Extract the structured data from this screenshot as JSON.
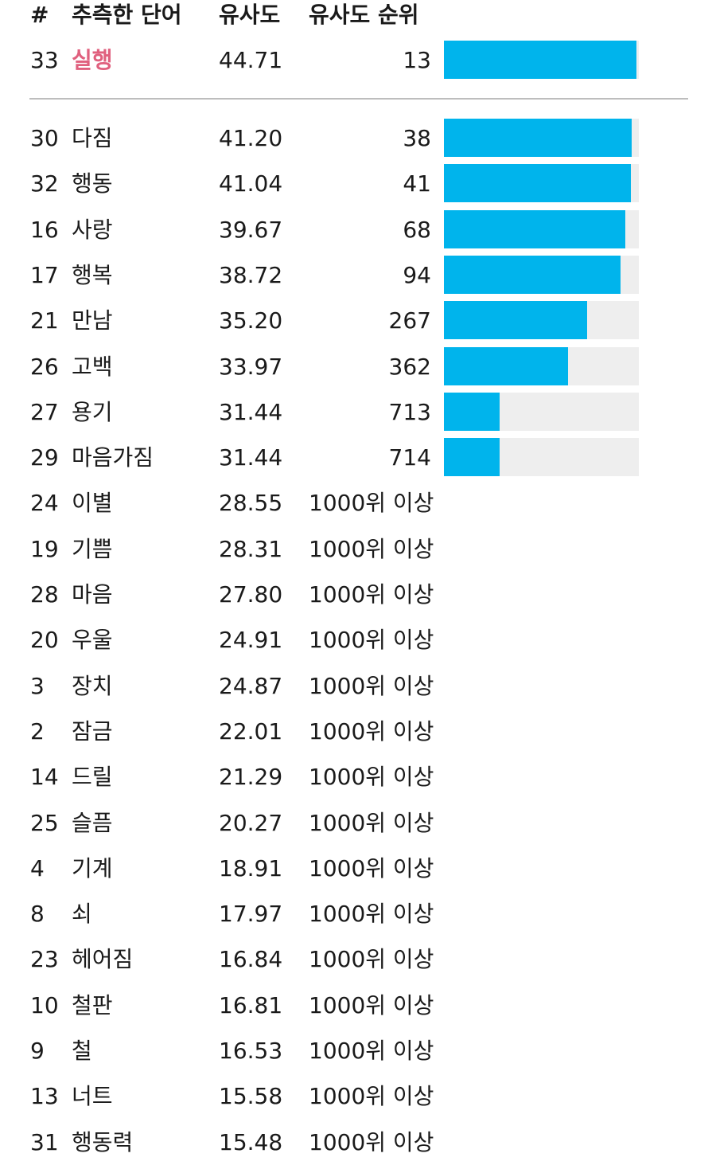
{
  "header": {
    "num": "#",
    "word": "추측한 단어",
    "similarity": "유사도",
    "rank": "유사도 순위"
  },
  "latest": {
    "num": "33",
    "word": "실행",
    "similarity": "44.71",
    "rank": "13",
    "proximity": 0.987
  },
  "guesses": [
    {
      "num": "30",
      "word": "다짐",
      "similarity": "41.20",
      "rank": "38",
      "proximity": 0.962
    },
    {
      "num": "32",
      "word": "행동",
      "similarity": "41.04",
      "rank": "41",
      "proximity": 0.959
    },
    {
      "num": "16",
      "word": "사랑",
      "similarity": "39.67",
      "rank": "68",
      "proximity": 0.932
    },
    {
      "num": "17",
      "word": "행복",
      "similarity": "38.72",
      "rank": "94",
      "proximity": 0.906
    },
    {
      "num": "21",
      "word": "만남",
      "similarity": "35.20",
      "rank": "267",
      "proximity": 0.733
    },
    {
      "num": "26",
      "word": "고백",
      "similarity": "33.97",
      "rank": "362",
      "proximity": 0.638
    },
    {
      "num": "27",
      "word": "용기",
      "similarity": "31.44",
      "rank": "713",
      "proximity": 0.287
    },
    {
      "num": "29",
      "word": "마음가짐",
      "similarity": "31.44",
      "rank": "714",
      "proximity": 0.286
    },
    {
      "num": "24",
      "word": "이별",
      "similarity": "28.55",
      "rank": "1000위 이상"
    },
    {
      "num": "19",
      "word": "기쁨",
      "similarity": "28.31",
      "rank": "1000위 이상"
    },
    {
      "num": "28",
      "word": "마음",
      "similarity": "27.80",
      "rank": "1000위 이상"
    },
    {
      "num": "20",
      "word": "우울",
      "similarity": "24.91",
      "rank": "1000위 이상"
    },
    {
      "num": "3",
      "word": "장치",
      "similarity": "24.87",
      "rank": "1000위 이상"
    },
    {
      "num": "2",
      "word": "잠금",
      "similarity": "22.01",
      "rank": "1000위 이상"
    },
    {
      "num": "14",
      "word": "드릴",
      "similarity": "21.29",
      "rank": "1000위 이상"
    },
    {
      "num": "25",
      "word": "슬픔",
      "similarity": "20.27",
      "rank": "1000위 이상"
    },
    {
      "num": "4",
      "word": "기계",
      "similarity": "18.91",
      "rank": "1000위 이상"
    },
    {
      "num": "8",
      "word": "쇠",
      "similarity": "17.97",
      "rank": "1000위 이상"
    },
    {
      "num": "23",
      "word": "헤어짐",
      "similarity": "16.84",
      "rank": "1000위 이상"
    },
    {
      "num": "10",
      "word": "철판",
      "similarity": "16.81",
      "rank": "1000위 이상"
    },
    {
      "num": "9",
      "word": "철",
      "similarity": "16.53",
      "rank": "1000위 이상"
    },
    {
      "num": "13",
      "word": "너트",
      "similarity": "15.58",
      "rank": "1000위 이상"
    },
    {
      "num": "31",
      "word": "행동력",
      "similarity": "15.48",
      "rank": "1000위 이상"
    }
  ],
  "colors": {
    "bar_fill": "#00b4ec",
    "bar_track": "#eeeeee",
    "latest_word": "#e0607e"
  }
}
